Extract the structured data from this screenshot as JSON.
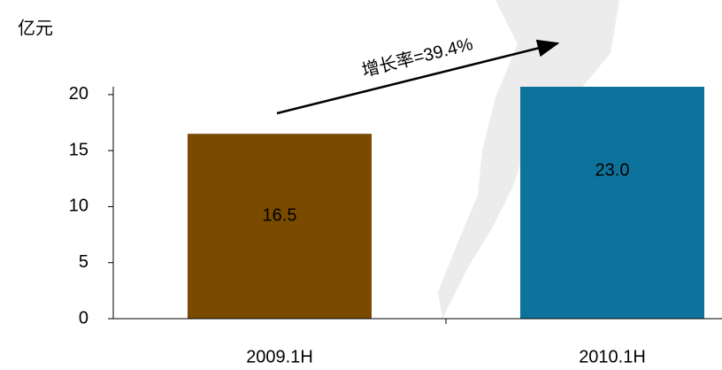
{
  "chart_data": {
    "type": "bar",
    "unit_label": "亿元",
    "annotation": "增长率=39.4%",
    "categories": [
      "2009.1H",
      "2010.1H"
    ],
    "values": [
      16.5,
      23.0
    ],
    "value_labels": [
      "16.5",
      "23.0"
    ],
    "colors": [
      "#7a4a00",
      "#0e739c"
    ],
    "ylim": [
      0,
      20.7
    ],
    "yticks": [
      0,
      5,
      10,
      15,
      20
    ],
    "grid": false
  }
}
